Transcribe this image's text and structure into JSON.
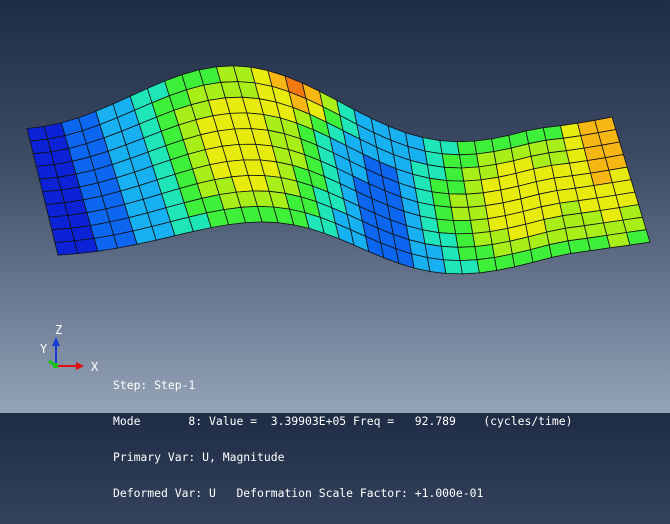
{
  "window": {
    "title": ""
  },
  "triad": {
    "z_label": "Z",
    "y_label": "Y",
    "x_label": "X"
  },
  "state_block": {
    "step": "Step: Step-1",
    "mode": "Mode       8: Value =  3.39903E+05 Freq =   92.789    (cycles/time)",
    "primary_var": "Primary Var: U, Magnitude",
    "deformed_var": "Deformed Var: U   Deformation Scale Factor: +1.000e-01"
  },
  "colors": {
    "bg_top": "#1f2c45",
    "bg_bottom": "#95a3b6",
    "contour_scale": [
      "#0b22d6",
      "#0c66f0",
      "#17b0f0",
      "#1fe6b8",
      "#3ef03a",
      "#a8ef1a",
      "#e8ec0e",
      "#f6b614",
      "#f07810",
      "#e4200c"
    ],
    "mesh_line": "#111111",
    "text": "#ffffff",
    "axis_x": "#e01010",
    "axis_y": "#18c018",
    "axis_z": "#1a3ad8"
  },
  "mesh": {
    "nx": 34,
    "ny": 10,
    "wave_amplitude": 52,
    "deformed_shape": "wavy plate, mode 8"
  }
}
